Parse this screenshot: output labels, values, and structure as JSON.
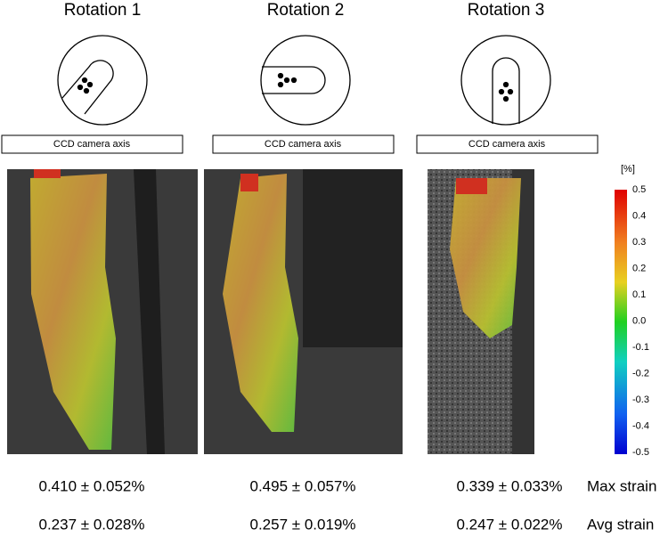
{
  "panels": [
    {
      "title": "Rotation 1",
      "axis_label": "CCD camera axis",
      "max_strain": "0.410 ± 0.052%",
      "avg_strain": "0.237 ± 0.028%"
    },
    {
      "title": "Rotation 2",
      "axis_label": "CCD camera axis",
      "max_strain": "0.495 ± 0.057%",
      "avg_strain": "0.257 ± 0.019%"
    },
    {
      "title": "Rotation 3",
      "axis_label": "CCD camera axis",
      "max_strain": "0.339 ± 0.033%",
      "avg_strain": "0.247 ± 0.022%"
    }
  ],
  "row_labels": {
    "max": "Max strain",
    "avg": "Avg strain"
  },
  "colorbar": {
    "unit": "[%]",
    "ticks": [
      "0.5",
      "0.4",
      "0.3",
      "0.2",
      "0.1",
      "0.0",
      "-0.1",
      "-0.2",
      "-0.3",
      "-0.4",
      "-0.5"
    ]
  }
}
